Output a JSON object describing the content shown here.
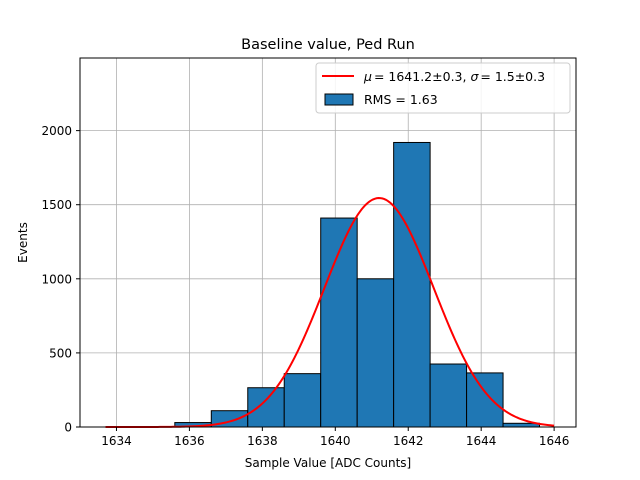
{
  "chart_data": {
    "type": "bar",
    "title": "Baseline value, Ped Run",
    "xlabel": "Sample Value [ADC Counts]",
    "ylabel": "Events",
    "xlim": [
      1633,
      1646.6
    ],
    "ylim": [
      0,
      2490
    ],
    "grid": true,
    "xticks": [
      1634,
      1636,
      1638,
      1640,
      1642,
      1644,
      1646
    ],
    "yticks": [
      0,
      500,
      1000,
      1500,
      2000
    ],
    "legend_position": "top-right",
    "histogram": {
      "name": "RMS = 1.63",
      "color": "#1f77b4",
      "bins": [
        {
          "left": 1635.6,
          "right": 1636.6,
          "count": 30
        },
        {
          "left": 1636.6,
          "right": 1637.6,
          "count": 110
        },
        {
          "left": 1637.6,
          "right": 1638.6,
          "count": 265
        },
        {
          "left": 1638.6,
          "right": 1639.6,
          "count": 360
        },
        {
          "left": 1639.6,
          "right": 1640.6,
          "count": 1410
        },
        {
          "left": 1640.6,
          "right": 1641.6,
          "count": 1000
        },
        {
          "left": 1641.6,
          "right": 1642.6,
          "count": 1920
        },
        {
          "left": 1642.6,
          "right": 1643.6,
          "count": 425
        },
        {
          "left": 1643.6,
          "right": 1644.6,
          "count": 365
        },
        {
          "left": 1644.6,
          "right": 1645.6,
          "count": 25
        }
      ]
    },
    "fit": {
      "name_mu_value": "= 1641.2±0.3, ",
      "name_sigma_value": "= 1.5±0.3",
      "color": "#ff0000",
      "mu": 1641.2,
      "sigma": 1.5,
      "amplitude": 1545,
      "x_range": [
        1633.7,
        1646.0
      ]
    },
    "legend_symbols": {
      "mu": "μ",
      "sigma": "σ"
    }
  }
}
